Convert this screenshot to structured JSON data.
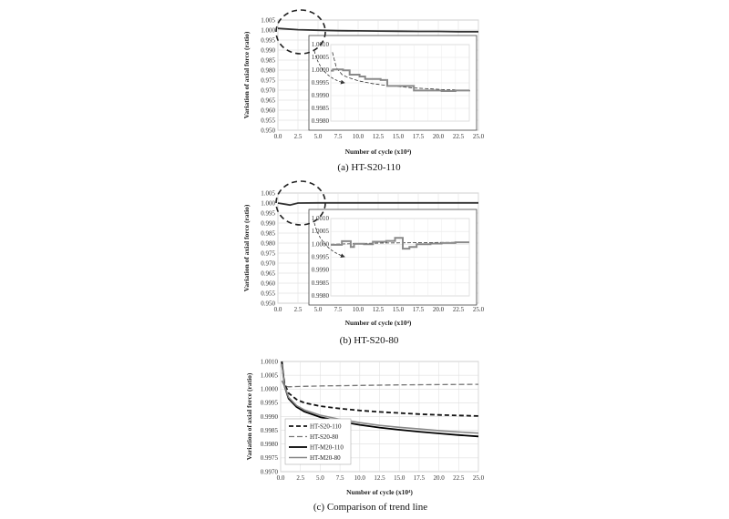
{
  "chart_data": [
    {
      "type": "line",
      "caption": "(a)  HT-S20-110",
      "xlabel": "Number of cycle (x10⁴)",
      "ylabel": "Variation of axial force (ratio)",
      "xlim": [
        0,
        25
      ],
      "ylim": [
        0.95,
        1.005
      ],
      "x_ticks": [
        "0.0",
        "2.5",
        "5.0",
        "7.5",
        "10.0",
        "12.5",
        "15.0",
        "17.5",
        "20.0",
        "22.5",
        "25.0"
      ],
      "y_ticks": [
        "1.005",
        "1.000",
        "0.995",
        "0.990",
        "0.985",
        "0.980",
        "0.975",
        "0.970",
        "0.965",
        "0.960",
        "0.955",
        "0.950"
      ],
      "grid": true,
      "series": [
        {
          "x": [
            0,
            2.5,
            5,
            7.5,
            10,
            12.5,
            15,
            17.5,
            20,
            22.5,
            25
          ],
          "y": [
            1.0008,
            1.0002,
            0.9999,
            0.9997,
            0.9996,
            0.9995,
            0.9994,
            0.9993,
            0.9993,
            0.9992,
            0.9992
          ]
        }
      ],
      "inset": {
        "xlim": [
          0,
          25
        ],
        "ylim": [
          0.998,
          1.001
        ],
        "x_ticks": [
          "0.0",
          "2.5",
          "5.0",
          "7.5",
          "10.0",
          "12.5",
          "15.0",
          "17.5",
          "20.0",
          "22.5",
          "25.0"
        ],
        "y_ticks": [
          "1.0010",
          "1.0005",
          "1.0000",
          "0.9995",
          "0.9990",
          "0.9985",
          "0.9980"
        ],
        "measured_x": [
          0,
          0.4,
          2.2,
          3.4,
          5.2,
          6.2,
          9.0,
          10.2,
          12.5,
          15.0,
          17.5,
          20.0,
          22.5,
          25.0
        ],
        "measured_y": [
          0.99998,
          1.00003,
          0.99999,
          0.99982,
          0.99975,
          0.99965,
          0.99961,
          0.99938,
          0.99938,
          0.9992,
          0.9992,
          0.99918,
          0.9992,
          0.99922
        ],
        "trend_x": [
          0.3,
          1,
          2,
          3,
          5,
          7.5,
          10,
          12.5,
          15,
          17.5,
          20,
          22.5,
          25
        ],
        "trend_y": [
          1.0007,
          1.0001,
          0.99983,
          0.99972,
          0.99958,
          0.99947,
          0.9994,
          0.99935,
          0.9993,
          0.99927,
          0.99924,
          0.99922,
          0.9992
        ]
      }
    },
    {
      "type": "line",
      "caption": "(b)  HT-S20-80",
      "xlabel": "Number of cycle (x10⁴)",
      "ylabel": "Variation of axial force (ratio)",
      "xlim": [
        0,
        25
      ],
      "ylim": [
        0.95,
        1.005
      ],
      "x_ticks": [
        "0.0",
        "2.5",
        "5.0",
        "7.5",
        "10.0",
        "12.5",
        "15.0",
        "17.5",
        "20.0",
        "22.5",
        "25.0"
      ],
      "y_ticks": [
        "1.005",
        "1.000",
        "0.995",
        "0.990",
        "0.985",
        "0.980",
        "0.975",
        "0.970",
        "0.965",
        "0.960",
        "0.955",
        "0.950"
      ],
      "grid": true,
      "series": [
        {
          "x": [
            0,
            1.5,
            2.5,
            5,
            7.5,
            10,
            12.5,
            15,
            17.5,
            20,
            22.5,
            25
          ],
          "y": [
            1.0,
            0.999,
            1.0,
            1.0001,
            1.0001,
            1.0001,
            1.0001,
            1.0001,
            1.0001,
            1.0001,
            1.0001,
            1.0001
          ]
        }
      ],
      "inset": {
        "xlim": [
          0,
          25
        ],
        "ylim": [
          0.998,
          1.001
        ],
        "x_ticks": [
          "0.0",
          "2.5",
          "5.0",
          "7.5",
          "10.0",
          "12.5",
          "15.0",
          "17.5",
          "20.0",
          "22.5",
          "25.0"
        ],
        "y_ticks": [
          "1.0010",
          "1.0005",
          "1.0000",
          "0.9995",
          "0.9990",
          "0.9985",
          "0.9980"
        ],
        "measured_x": [
          0,
          2.0,
          3.6,
          4.2,
          6.0,
          7.6,
          10.0,
          11.6,
          13.0,
          14.2,
          15.5,
          18.0,
          20.0,
          22.5,
          25.0
        ],
        "measured_y": [
          0.99998,
          1.00012,
          0.9999,
          1.00002,
          1.0,
          1.0001,
          1.00013,
          1.00025,
          0.99983,
          0.9999,
          1.0,
          1.00003,
          1.00005,
          1.00008,
          1.00008
        ],
        "trend_x": [
          0,
          2,
          5,
          10,
          15,
          20,
          25
        ],
        "trend_y": [
          1.0,
          1.00001,
          1.00003,
          1.00005,
          1.00006,
          1.00007,
          1.00008
        ]
      }
    },
    {
      "type": "line",
      "caption": "(c)  Comparison  of  trend  line",
      "xlabel": "Number of cycle (x10⁴)",
      "ylabel": "Variation of axial force (ratio)",
      "xlim": [
        0,
        25
      ],
      "ylim": [
        0.997,
        1.001
      ],
      "x_ticks": [
        "0.0",
        "2.5",
        "5.0",
        "7.5",
        "10.0",
        "12.5",
        "15.0",
        "17.5",
        "20.0",
        "22.5",
        "25.0"
      ],
      "y_ticks": [
        "1.0010",
        "1.0005",
        "1.0000",
        "0.9995",
        "0.9990",
        "0.9985",
        "0.9980",
        "0.9975",
        "0.9970"
      ],
      "grid": true,
      "legend": "bottom-left",
      "series": [
        {
          "name": "HT-S20-110",
          "x": [
            0.15,
            0.5,
            1,
            2,
            3,
            5,
            7.5,
            10,
            12.5,
            15,
            17.5,
            20,
            22.5,
            25
          ],
          "y": [
            1.0009,
            1.0002,
            0.99985,
            0.99962,
            0.9995,
            0.99938,
            0.99929,
            0.99922,
            0.99917,
            0.99913,
            0.99909,
            0.99906,
            0.99904,
            0.99902
          ]
        },
        {
          "name": "HT-S20-80",
          "x": [
            0.15,
            0.5,
            1,
            2,
            5,
            10,
            15,
            20,
            25
          ],
          "y": [
            1.0003,
            1.0001,
            1.00008,
            1.00009,
            1.00011,
            1.00013,
            1.00015,
            1.00016,
            1.00017
          ]
        },
        {
          "name": "HT-M20-110",
          "x": [
            0.15,
            0.5,
            1,
            2,
            3,
            5,
            7.5,
            10,
            12.5,
            15,
            17.5,
            20,
            22.5,
            25
          ],
          "y": [
            1.001,
            1.0001,
            0.99965,
            0.99935,
            0.99918,
            0.99898,
            0.99882,
            0.9987,
            0.9986,
            0.99852,
            0.99845,
            0.99839,
            0.99833,
            0.99828
          ]
        },
        {
          "name": "HT-M20-80",
          "x": [
            0.15,
            0.5,
            1,
            2,
            3,
            5,
            7.5,
            10,
            12.5,
            15,
            17.5,
            20,
            22.5,
            25
          ],
          "y": [
            1.0009,
            1.0001,
            0.9997,
            0.9994,
            0.99924,
            0.99905,
            0.9989,
            0.99878,
            0.99868,
            0.99861,
            0.99855,
            0.99849,
            0.99844,
            0.9984
          ]
        }
      ]
    }
  ]
}
